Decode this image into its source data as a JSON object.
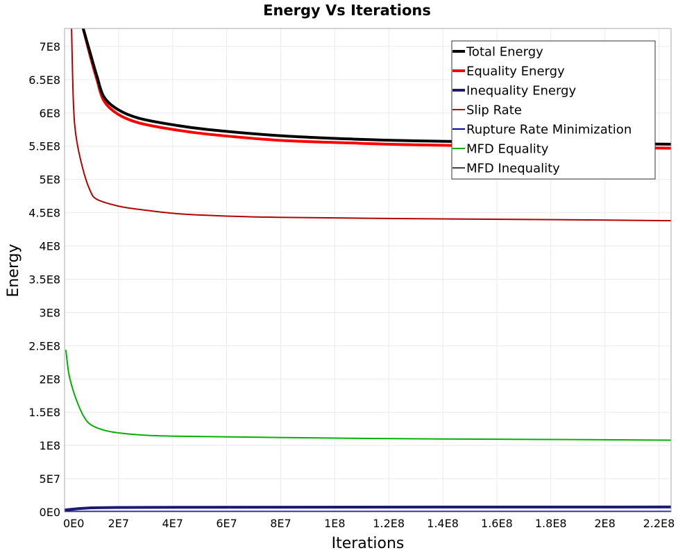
{
  "chart_data": {
    "type": "line",
    "title": "Energy Vs Iterations",
    "xlabel": "Iterations",
    "ylabel": "Energy",
    "xlim": [
      0,
      224500000
    ],
    "ylim": [
      0,
      727000000
    ],
    "grid": true,
    "legend_position": "top-right",
    "x_ticks": [
      {
        "value": 0,
        "label": "0E0"
      },
      {
        "value": 20000000,
        "label": "2E7"
      },
      {
        "value": 40000000,
        "label": "4E7"
      },
      {
        "value": 60000000,
        "label": "6E7"
      },
      {
        "value": 80000000,
        "label": "8E7"
      },
      {
        "value": 100000000,
        "label": "1E8"
      },
      {
        "value": 120000000,
        "label": "1.2E8"
      },
      {
        "value": 140000000,
        "label": "1.4E8"
      },
      {
        "value": 160000000,
        "label": "1.6E8"
      },
      {
        "value": 180000000,
        "label": "1.8E8"
      },
      {
        "value": 200000000,
        "label": "2E8"
      },
      {
        "value": 220000000,
        "label": "2.2E8"
      }
    ],
    "y_ticks": [
      {
        "value": 0,
        "label": "0E0"
      },
      {
        "value": 50000000,
        "label": "5E7"
      },
      {
        "value": 100000000,
        "label": "1E8"
      },
      {
        "value": 150000000,
        "label": "1.5E8"
      },
      {
        "value": 200000000,
        "label": "2E8"
      },
      {
        "value": 250000000,
        "label": "2.5E8"
      },
      {
        "value": 300000000,
        "label": "3E8"
      },
      {
        "value": 350000000,
        "label": "3.5E8"
      },
      {
        "value": 400000000,
        "label": "4E8"
      },
      {
        "value": 450000000,
        "label": "4.5E8"
      },
      {
        "value": 500000000,
        "label": "5E8"
      },
      {
        "value": 550000000,
        "label": "5.5E8"
      },
      {
        "value": 600000000,
        "label": "6E8"
      },
      {
        "value": 650000000,
        "label": "6.5E8"
      },
      {
        "value": 700000000,
        "label": "7E8"
      }
    ],
    "series": [
      {
        "name": "Total Energy",
        "color": "#000000",
        "weight": "thick",
        "x": [
          6900000,
          9500000,
          12000000,
          14600000,
          19800000,
          27500000,
          40300000,
          53100000,
          78800000,
          104500000,
          130100000,
          181500000,
          224500000
        ],
        "y": [
          727000000,
          690000000,
          655000000,
          624000000,
          605000000,
          592000000,
          582000000,
          575000000,
          566000000,
          561000000,
          558000000,
          555000000,
          553000000
        ]
      },
      {
        "name": "Equality Energy",
        "color": "#ff0000",
        "weight": "thick",
        "x": [
          6900000,
          9500000,
          12000000,
          14600000,
          19800000,
          27500000,
          40300000,
          53100000,
          78800000,
          104500000,
          130100000,
          181500000,
          224500000
        ],
        "y": [
          727000000,
          686000000,
          650000000,
          618000000,
          598000000,
          585000000,
          575000000,
          568000000,
          559000000,
          555000000,
          552000000,
          549000000,
          547000000
        ]
      },
      {
        "name": "Inequality Energy",
        "color": "#1a1a6e",
        "weight": "thick",
        "x": [
          0,
          5000000,
          10000000,
          20000000,
          40000000,
          80000000,
          140000000,
          224500000
        ],
        "y": [
          3000000,
          5000000,
          6200000,
          6800000,
          7000000,
          7200000,
          7400000,
          7500000
        ]
      },
      {
        "name": "Slip Rate",
        "color": "#b30000",
        "weight": "thin",
        "x": [
          2600000,
          3300000,
          4400000,
          6900000,
          9500000,
          12000000,
          19800000,
          27500000,
          40300000,
          53100000,
          78800000,
          130100000,
          181500000,
          224500000
        ],
        "y": [
          727000000,
          613000000,
          561000000,
          514000000,
          483000000,
          470000000,
          460000000,
          455000000,
          449000000,
          446000000,
          443000000,
          441000000,
          439500000,
          438000000
        ]
      },
      {
        "name": "Rupture Rate Minimization",
        "color": "#000099",
        "weight": "thin",
        "x": [
          0,
          224500000
        ],
        "y": [
          800000,
          800000
        ]
      },
      {
        "name": "MFD Equality",
        "color": "#00b000",
        "weight": "thin",
        "x": [
          500000,
          1500000,
          2800000,
          4700000,
          7200000,
          9800000,
          14600000,
          19800000,
          27500000,
          40300000,
          78800000,
          130100000,
          181500000,
          224500000
        ],
        "y": [
          243000000,
          210000000,
          188000000,
          165000000,
          143000000,
          131000000,
          123000000,
          119000000,
          116000000,
          114000000,
          112000000,
          110000000,
          109000000,
          108000000
        ]
      },
      {
        "name": "MFD Inequality",
        "color": "#404040",
        "weight": "thin",
        "x": [
          0,
          224500000
        ],
        "y": [
          0,
          0
        ]
      }
    ]
  }
}
